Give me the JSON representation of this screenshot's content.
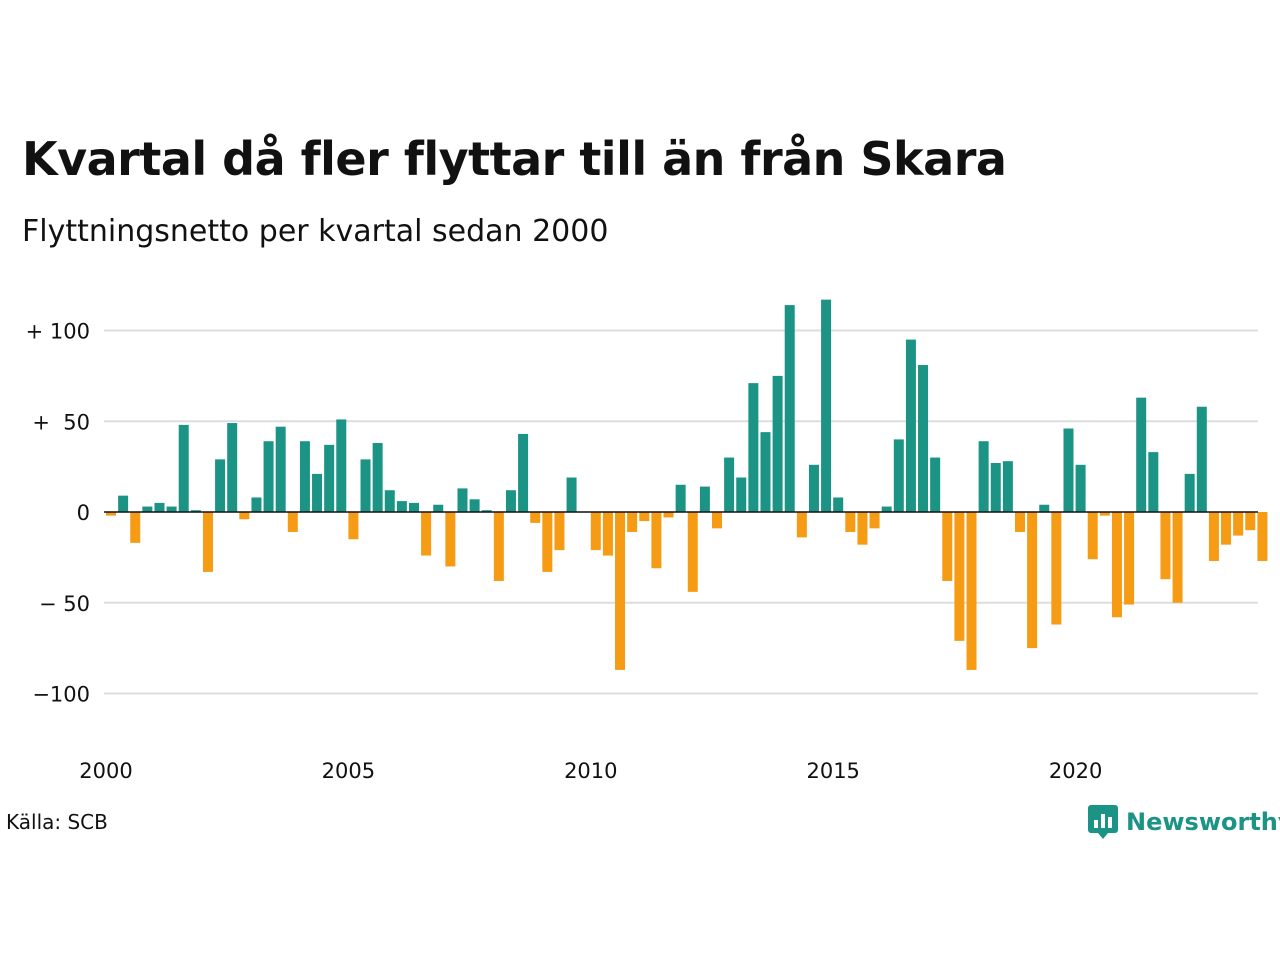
{
  "title": "Kvartal då fler flyttar till än från Skara",
  "subtitle": "Flyttningsnetto per kvartal sedan 2000",
  "source": "Källa: SCB",
  "brand": {
    "name": "Newsworthy",
    "icon": "newsworthy-logo-icon"
  },
  "colors": {
    "positive": "#1b9385",
    "negative": "#f59b14",
    "grid": "#dddddd",
    "axis": "#111111"
  },
  "chart_data": {
    "type": "bar",
    "x_start": "2000 Q1",
    "x_ticks": [
      "2000",
      "2005",
      "2010",
      "2015",
      "2020"
    ],
    "y_ticks": [
      {
        "value": 100,
        "label": "+ 100"
      },
      {
        "value": 50,
        "label": "+  50"
      },
      {
        "value": 0,
        "label": "0"
      },
      {
        "value": -50,
        "label": "− 50"
      },
      {
        "value": -100,
        "label": "−100"
      }
    ],
    "ylim": [
      -125,
      120
    ],
    "grid": true,
    "values": [
      -2,
      9,
      -17,
      3,
      5,
      3,
      48,
      1,
      -33,
      29,
      49,
      -4,
      8,
      39,
      47,
      -11,
      39,
      21,
      37,
      51,
      -15,
      29,
      38,
      12,
      6,
      5,
      -24,
      4,
      -30,
      13,
      7,
      1,
      -38,
      12,
      43,
      -6,
      -33,
      -21,
      19,
      0,
      -21,
      -24,
      -87,
      -11,
      -5,
      -31,
      -3,
      15,
      -44,
      14,
      -9,
      30,
      19,
      71,
      44,
      75,
      114,
      -14,
      26,
      117,
      8,
      -11,
      -18,
      -9,
      3,
      40,
      95,
      81,
      30,
      -38,
      -71,
      -87,
      39,
      27,
      28,
      -11,
      -75,
      4,
      -62,
      46,
      26,
      -26,
      -2,
      -58,
      -51,
      63,
      33,
      -37,
      -50,
      21,
      58,
      -27,
      -18,
      -13,
      -10,
      -27
    ]
  }
}
